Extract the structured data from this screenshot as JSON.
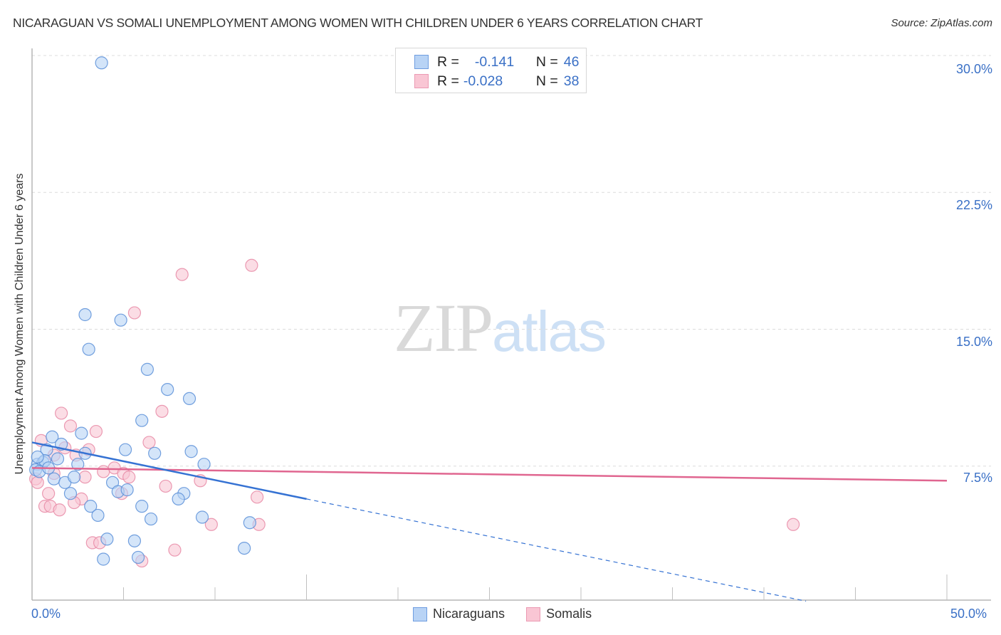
{
  "header": {
    "title": "NICARAGUAN VS SOMALI UNEMPLOYMENT AMONG WOMEN WITH CHILDREN UNDER 6 YEARS CORRELATION CHART",
    "source": "Source: ZipAtlas.com"
  },
  "watermark": {
    "zip": "ZIP",
    "atlas": "atlas"
  },
  "axes": {
    "ylabel": "Unemployment Among Women with Children Under 6 years",
    "yticks": [
      "30.0%",
      "22.5%",
      "15.0%",
      "7.5%"
    ],
    "xticks": [
      "0.0%",
      "50.0%"
    ]
  },
  "legend_stats": {
    "series1": {
      "r_label": "R =",
      "r_value": "-0.141",
      "n_label": "N =",
      "n_value": "46"
    },
    "series2": {
      "r_label": "R =",
      "r_value": "-0.028",
      "n_label": "N =",
      "n_value": "38"
    }
  },
  "legend": {
    "series1": "Nicaraguans",
    "series2": "Somalis"
  },
  "colors": {
    "nicaraguans_fill": "#b8d3f5",
    "nicaraguans_stroke": "#5b8fd8",
    "nicaraguans_line": "#3572d3",
    "somalis_fill": "#f9c6d4",
    "somalis_stroke": "#e88aa6",
    "somalis_line": "#e06690",
    "tick_label": "#3a70c6"
  },
  "chart_data": {
    "type": "scatter",
    "title": "NICARAGUAN VS SOMALI UNEMPLOYMENT AMONG WOMEN WITH CHILDREN UNDER 6 YEARS CORRELATION CHART",
    "xlabel": "",
    "ylabel": "Unemployment Among Women with Children Under 6 years",
    "xlim": [
      0,
      50
    ],
    "ylim": [
      0,
      30
    ],
    "yticks": [
      7.5,
      15.0,
      22.5,
      30.0
    ],
    "grid": "horizontal dashed",
    "legend_position": "bottom",
    "series": [
      {
        "name": "Nicaraguans",
        "r": -0.141,
        "n": 46,
        "points": [
          [
            3.8,
            29.6
          ],
          [
            2.9,
            15.8
          ],
          [
            4.85,
            15.5
          ],
          [
            3.1,
            13.9
          ],
          [
            6.3,
            12.8
          ],
          [
            7.4,
            11.7
          ],
          [
            8.6,
            11.2
          ],
          [
            6.0,
            10.0
          ],
          [
            1.1,
            9.1
          ],
          [
            2.7,
            9.3
          ],
          [
            1.6,
            8.7
          ],
          [
            0.8,
            8.4
          ],
          [
            2.9,
            8.2
          ],
          [
            5.1,
            8.4
          ],
          [
            6.7,
            8.2
          ],
          [
            8.7,
            8.3
          ],
          [
            1.4,
            7.9
          ],
          [
            0.3,
            7.6
          ],
          [
            0.6,
            7.7
          ],
          [
            0.2,
            7.3
          ],
          [
            2.5,
            7.6
          ],
          [
            9.4,
            7.6
          ],
          [
            1.2,
            6.8
          ],
          [
            1.8,
            6.6
          ],
          [
            2.3,
            6.9
          ],
          [
            4.4,
            6.6
          ],
          [
            2.1,
            6.0
          ],
          [
            4.7,
            6.1
          ],
          [
            5.2,
            6.2
          ],
          [
            8.3,
            6.0
          ],
          [
            8.0,
            5.7
          ],
          [
            3.2,
            5.3
          ],
          [
            6.0,
            5.3
          ],
          [
            3.6,
            4.8
          ],
          [
            6.5,
            4.6
          ],
          [
            9.3,
            4.7
          ],
          [
            11.9,
            4.4
          ],
          [
            4.1,
            3.5
          ],
          [
            5.6,
            3.4
          ],
          [
            3.9,
            2.4
          ],
          [
            5.8,
            2.5
          ],
          [
            11.6,
            3.0
          ],
          [
            0.7,
            7.8
          ],
          [
            0.4,
            7.2
          ],
          [
            0.9,
            7.4
          ],
          [
            0.3,
            8.0
          ]
        ],
        "trend": {
          "x0": 0,
          "y0": 8.8,
          "x1": 15,
          "y1": 5.7,
          "dashed_to": [
            42.3,
            0.1
          ]
        }
      },
      {
        "name": "Somalis",
        "r": -0.028,
        "n": 38,
        "points": [
          [
            12.0,
            18.5
          ],
          [
            8.2,
            18.0
          ],
          [
            5.6,
            15.9
          ],
          [
            1.6,
            10.4
          ],
          [
            7.1,
            10.5
          ],
          [
            2.1,
            9.7
          ],
          [
            3.5,
            9.4
          ],
          [
            0.5,
            8.9
          ],
          [
            6.4,
            8.8
          ],
          [
            3.1,
            8.4
          ],
          [
            1.8,
            8.5
          ],
          [
            1.2,
            8.1
          ],
          [
            2.4,
            8.1
          ],
          [
            4.5,
            7.4
          ],
          [
            3.9,
            7.2
          ],
          [
            5.0,
            7.1
          ],
          [
            5.3,
            6.9
          ],
          [
            1.2,
            7.1
          ],
          [
            2.9,
            6.9
          ],
          [
            0.2,
            6.8
          ],
          [
            0.3,
            6.6
          ],
          [
            7.3,
            6.4
          ],
          [
            9.2,
            6.7
          ],
          [
            0.9,
            6.0
          ],
          [
            4.9,
            6.0
          ],
          [
            12.3,
            5.8
          ],
          [
            2.7,
            5.7
          ],
          [
            2.3,
            5.5
          ],
          [
            0.7,
            5.3
          ],
          [
            1.0,
            5.3
          ],
          [
            1.5,
            5.1
          ],
          [
            9.8,
            4.3
          ],
          [
            12.4,
            4.3
          ],
          [
            41.6,
            4.3
          ],
          [
            3.3,
            3.3
          ],
          [
            3.7,
            3.3
          ],
          [
            7.8,
            2.9
          ],
          [
            6.0,
            2.3
          ]
        ],
        "trend": {
          "x0": 0,
          "y0": 7.4,
          "x1": 50,
          "y1": 6.7
        }
      }
    ]
  }
}
